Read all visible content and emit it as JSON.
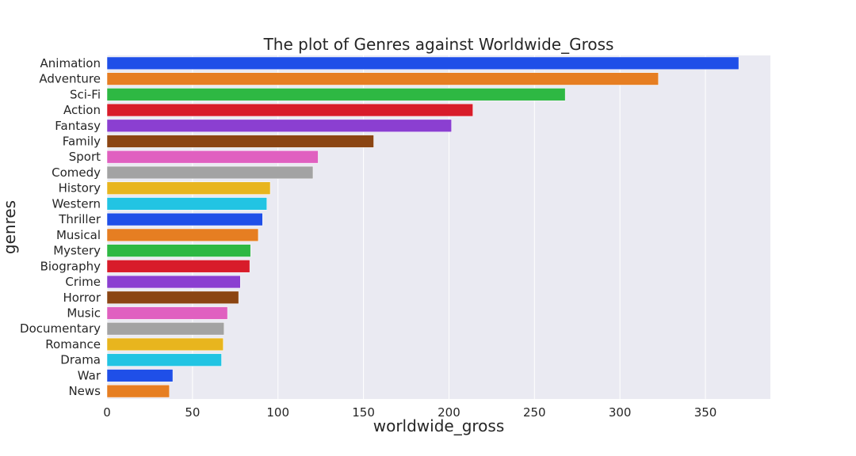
{
  "chart_data": {
    "type": "bar",
    "orientation": "horizontal",
    "title": "The plot of Genres against Worldwide_Gross",
    "xlabel": "worldwide_gross",
    "ylabel": "genres",
    "xlim": [
      0,
      388
    ],
    "xticks": [
      0,
      50,
      100,
      150,
      200,
      250,
      300,
      350
    ],
    "grid": true,
    "categories": [
      "Animation",
      "Adventure",
      "Sci-Fi",
      "Action",
      "Fantasy",
      "Family",
      "Sport",
      "Comedy",
      "History",
      "Western",
      "Thriller",
      "Musical",
      "Mystery",
      "Biography",
      "Crime",
      "Horror",
      "Music",
      "Documentary",
      "Romance",
      "Drama",
      "War",
      "News"
    ],
    "values": [
      369.5,
      322.5,
      268,
      214,
      201.5,
      156,
      123.5,
      120.5,
      95.5,
      93.5,
      91,
      88.5,
      84,
      83.5,
      78,
      77,
      70.5,
      68.5,
      68,
      67,
      38.5,
      36.5
    ],
    "colors": [
      "#1f4fe8",
      "#e67e22",
      "#2eb843",
      "#d81c2a",
      "#8b3fd1",
      "#8b4513",
      "#e060c0",
      "#a3a3a3",
      "#e8b51e",
      "#22c4e3",
      "#1f4fe8",
      "#e67e22",
      "#2eb843",
      "#d81c2a",
      "#8b3fd1",
      "#8b4513",
      "#e060c0",
      "#a3a3a3",
      "#e8b51e",
      "#22c4e3",
      "#1f4fe8",
      "#e67e22"
    ],
    "plot_background": "#eaeaf2",
    "grid_color": "#ffffff"
  }
}
